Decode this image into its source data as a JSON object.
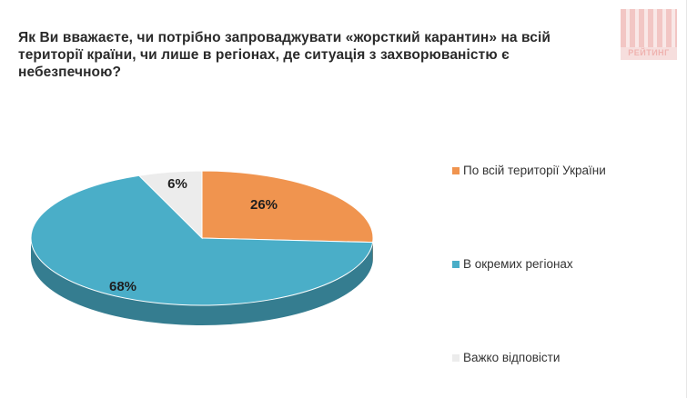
{
  "title": "Як Ви вважаєте, чи потрібно запроваджувати «жорсткий карантин» на всій території країни, чи лише в регіонах, де ситуація з захворюваністю є небезпечною?",
  "logo": {
    "text": "РЕЙТИНГ",
    "color": "#efb3b0"
  },
  "chart_data": {
    "type": "pie",
    "style": "3d",
    "title": "Як Ви вважаєте, чи потрібно запроваджувати «жорсткий карантин» на всій території країни, чи лише в регіонах, де ситуація з захворюваністю є небезпечною?",
    "legend_position": "right",
    "slices": [
      {
        "label": "По всій території України",
        "value": 26,
        "display": "26%",
        "color": "#f0944f"
      },
      {
        "label": "В окремих регіонах",
        "value": 68,
        "display": "68%",
        "color": "#4aaec8"
      },
      {
        "label": "Важко відповісти",
        "value": 6,
        "display": "6%",
        "color": "#ececec"
      }
    ]
  }
}
